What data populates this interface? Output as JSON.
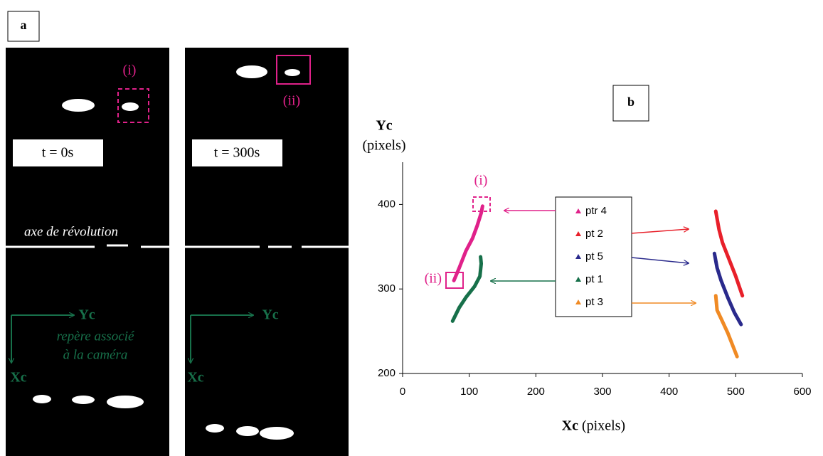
{
  "panel_a": {
    "label": "a",
    "annotation_i": "(i)",
    "annotation_ii": "(ii)",
    "time_0": "t = 0s",
    "time_300": "t = 300s",
    "axis_label": "axe de révolution",
    "yc": "Yc",
    "xc": "Xc",
    "frame_line1": "repère associé",
    "frame_line2": "à la caméra"
  },
  "chart_data": {
    "type": "line",
    "panel_label": "b",
    "y_label": "Yc",
    "y_unit": "(pixels)",
    "x_label": "Xc",
    "x_unit": "(pixels)",
    "annotations": [
      "(i)",
      "(ii)"
    ],
    "xlim": [
      0,
      600
    ],
    "xticks": [
      0,
      100,
      200,
      300,
      400,
      500,
      600
    ],
    "ylim": [
      200,
      450
    ],
    "yticks": [
      200,
      300,
      400
    ],
    "series": [
      {
        "name": "ptr 4",
        "color": "#e0218a",
        "x": [
          77,
          85,
          95,
          105,
          112,
          118,
          120
        ],
        "values": [
          310,
          325,
          345,
          360,
          375,
          390,
          398
        ]
      },
      {
        "name": "pt 2",
        "color": "#e8202a",
        "x": [
          470,
          475,
          480,
          490,
          500,
          510
        ],
        "values": [
          392,
          370,
          355,
          335,
          315,
          292
        ]
      },
      {
        "name": "pt 5",
        "color": "#2a2a8c",
        "x": [
          468,
          472,
          478,
          488,
          498,
          508
        ],
        "values": [
          342,
          325,
          310,
          290,
          272,
          258
        ]
      },
      {
        "name": "pt 1",
        "color": "#17704a",
        "x": [
          75,
          85,
          95,
          108,
          116,
          118,
          117
        ],
        "values": [
          262,
          278,
          290,
          303,
          315,
          330,
          338
        ]
      },
      {
        "name": "pt 3",
        "color": "#f08a24",
        "x": [
          470,
          472,
          478,
          488,
          496,
          502
        ],
        "values": [
          292,
          275,
          265,
          248,
          232,
          220
        ]
      }
    ]
  }
}
